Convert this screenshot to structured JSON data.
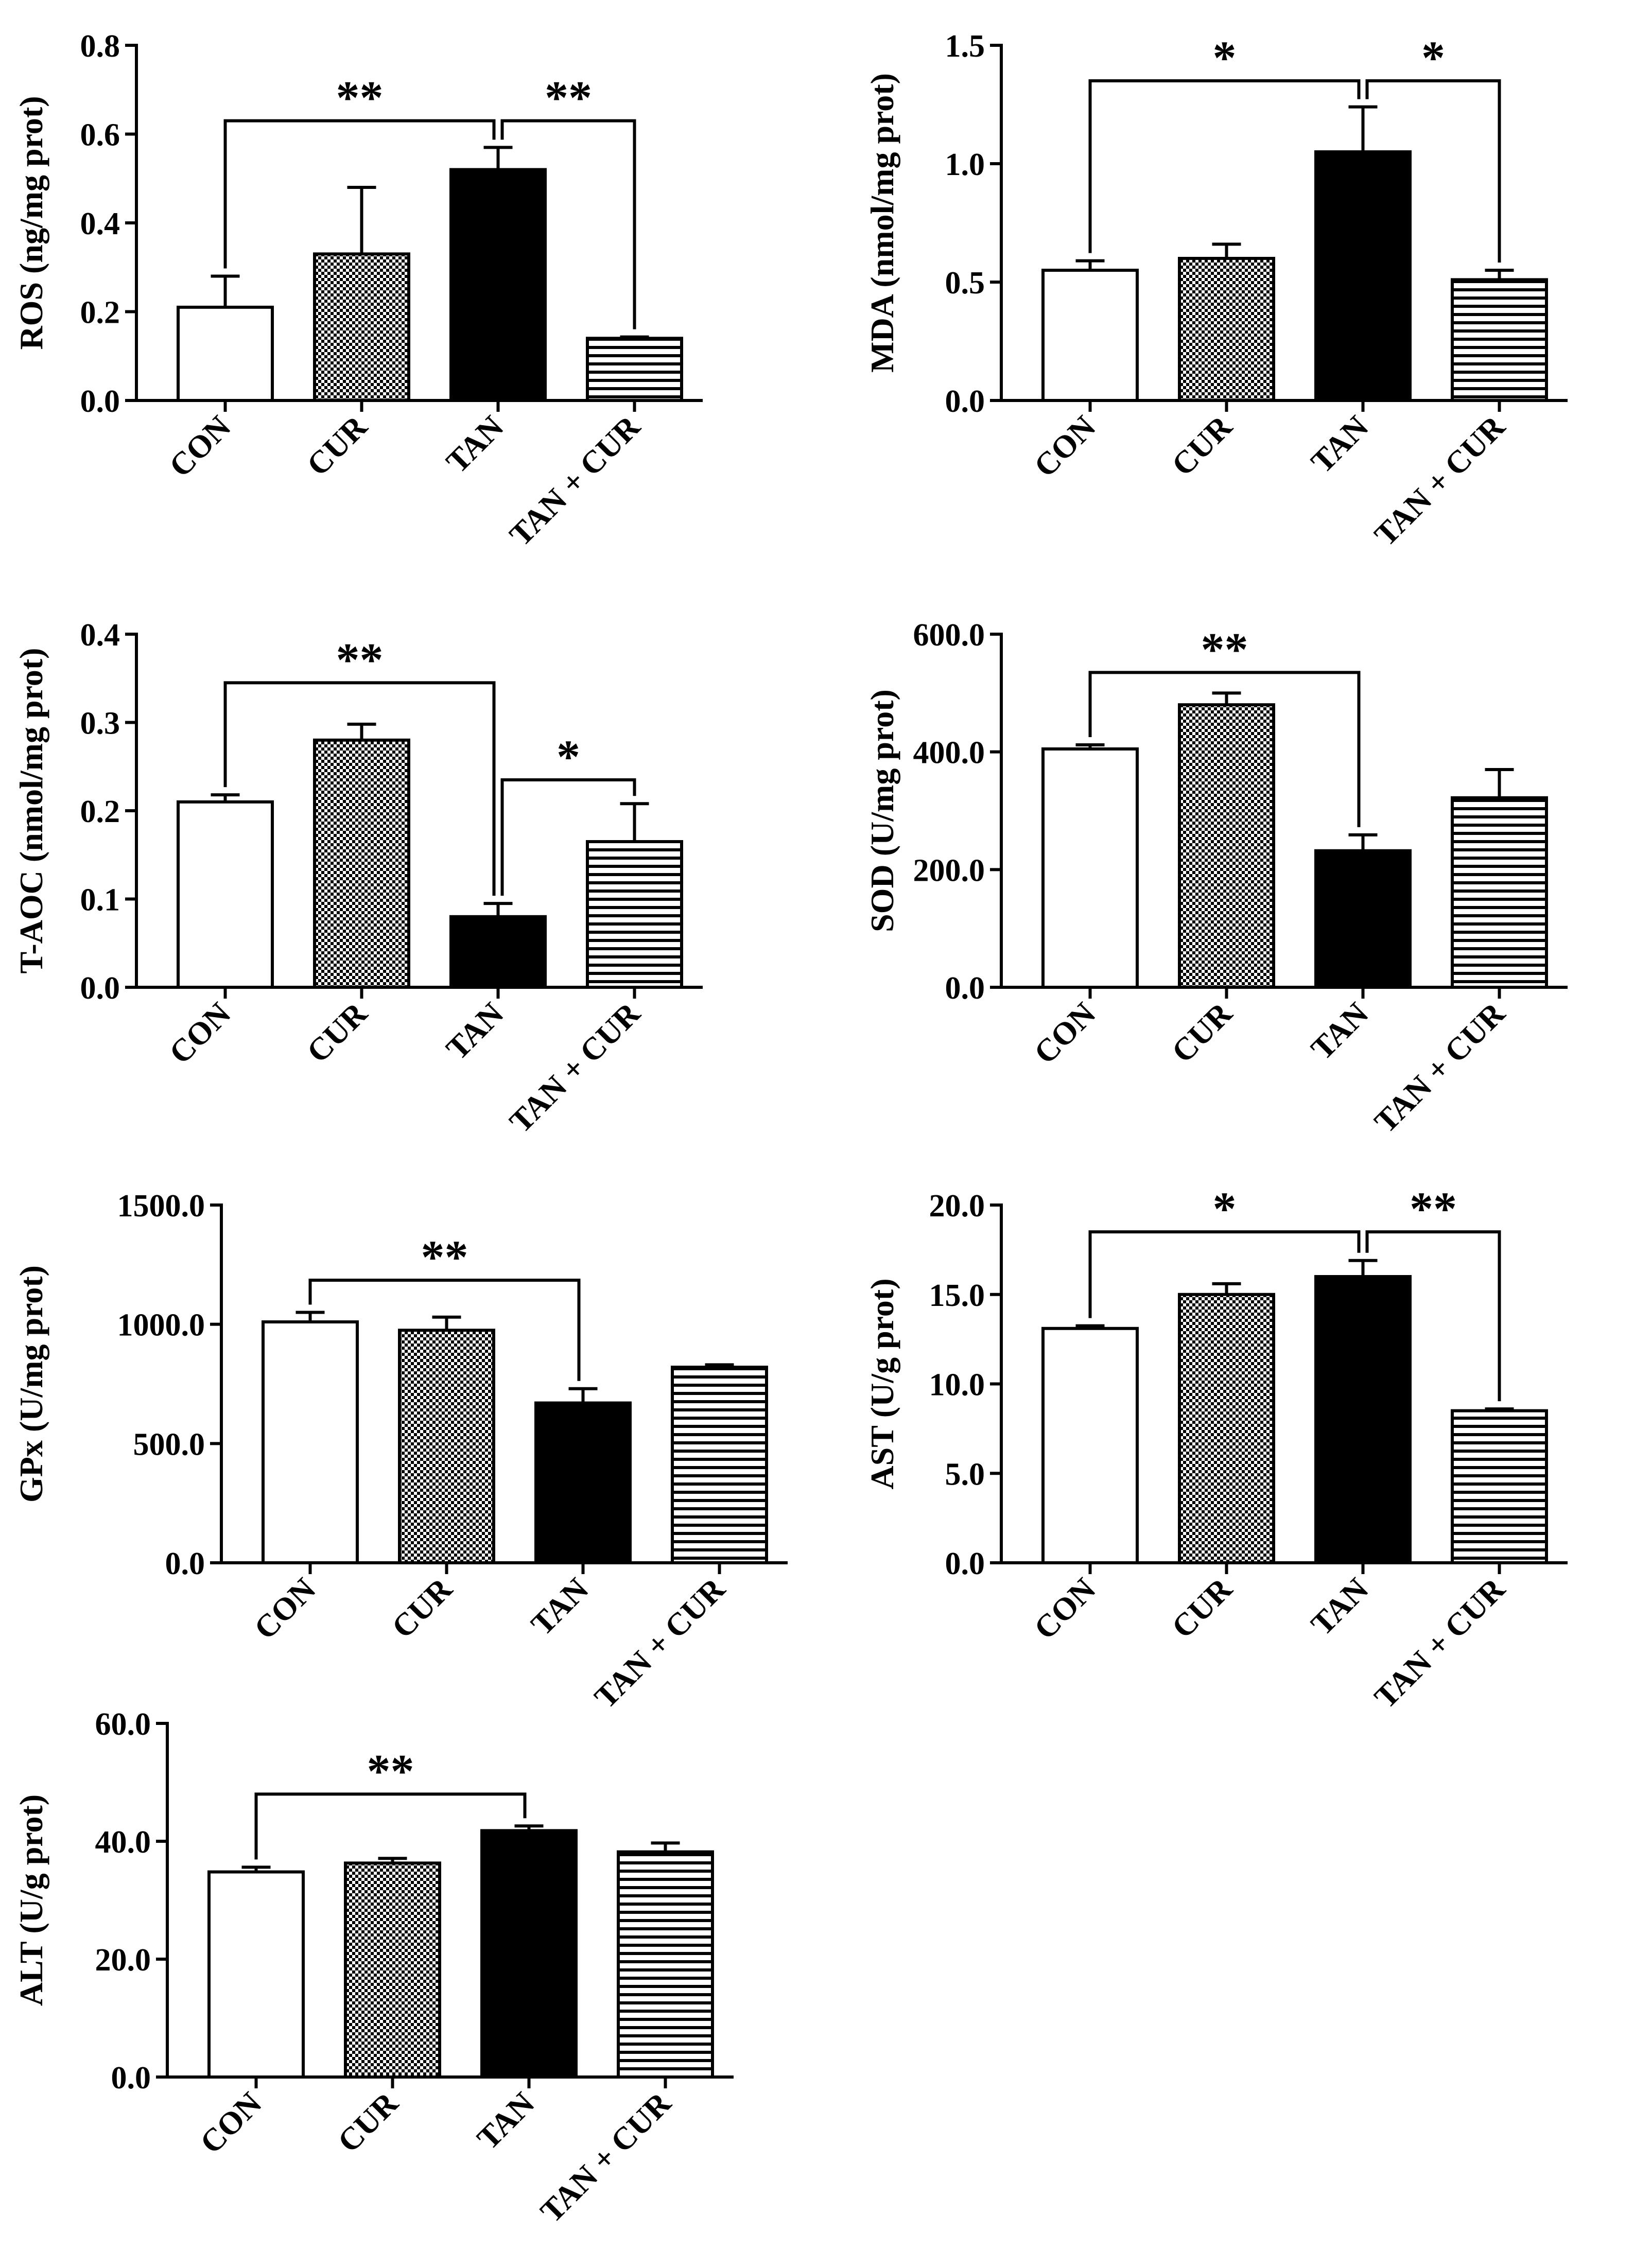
{
  "figure": {
    "pattern_colors": {
      "stroke": "#000000",
      "fill_white": "#ffffff",
      "fill_black": "#000000"
    }
  },
  "chart_data": [
    {
      "id": "ros",
      "type": "bar",
      "categories": [
        "CON",
        "CUR",
        "TAN",
        "TAN + CUR"
      ],
      "fills": [
        "white",
        "checker",
        "black",
        "hlines"
      ],
      "values": [
        0.21,
        0.33,
        0.52,
        0.14
      ],
      "errors": [
        0.07,
        0.15,
        0.05,
        0.003
      ],
      "ylabel": "ROS (ng/mg prot)",
      "ylim": [
        0,
        0.8
      ],
      "yticks": [
        0.0,
        0.2,
        0.4,
        0.6,
        0.8
      ],
      "tick_labels": [
        "0.0",
        "0.2",
        "0.4",
        "0.6",
        "0.8"
      ],
      "significance": [
        {
          "from": 0,
          "to": 2,
          "label": "**",
          "y": 0.63
        },
        {
          "from": 2,
          "to": 3,
          "label": "**",
          "y": 0.63
        }
      ]
    },
    {
      "id": "mda",
      "type": "bar",
      "categories": [
        "CON",
        "CUR",
        "TAN",
        "TAN + CUR"
      ],
      "fills": [
        "white",
        "checker",
        "black",
        "hlines"
      ],
      "values": [
        0.55,
        0.6,
        1.05,
        0.51
      ],
      "errors": [
        0.04,
        0.06,
        0.19,
        0.04
      ],
      "ylabel": "MDA (nmol/mg prot)",
      "ylim": [
        0,
        1.5
      ],
      "yticks": [
        0.0,
        0.5,
        1.0,
        1.5
      ],
      "tick_labels": [
        "0.0",
        "0.5",
        "1.0",
        "1.5"
      ],
      "significance": [
        {
          "from": 0,
          "to": 2,
          "label": "*",
          "y": 1.35
        },
        {
          "from": 2,
          "to": 3,
          "label": "*",
          "y": 1.35
        }
      ]
    },
    {
      "id": "taoc",
      "type": "bar",
      "categories": [
        "CON",
        "CUR",
        "TAN",
        "TAN + CUR"
      ],
      "fills": [
        "white",
        "checker",
        "black",
        "hlines"
      ],
      "values": [
        0.21,
        0.28,
        0.08,
        0.165
      ],
      "errors": [
        0.008,
        0.018,
        0.015,
        0.043
      ],
      "ylabel": "T-AOC (nmol/mg prot)",
      "ylim": [
        0,
        0.4
      ],
      "yticks": [
        0.0,
        0.1,
        0.2,
        0.3,
        0.4
      ],
      "tick_labels": [
        "0.0",
        "0.1",
        "0.2",
        "0.3",
        "0.4"
      ],
      "significance": [
        {
          "from": 0,
          "to": 2,
          "label": "**",
          "y": 0.345
        },
        {
          "from": 2,
          "to": 3,
          "label": "*",
          "y": 0.235
        }
      ]
    },
    {
      "id": "sod",
      "type": "bar",
      "categories": [
        "CON",
        "CUR",
        "TAN",
        "TAN + CUR"
      ],
      "fills": [
        "white",
        "checker",
        "black",
        "hlines"
      ],
      "values": [
        405,
        480,
        232,
        322
      ],
      "errors": [
        7,
        20,
        27,
        48
      ],
      "ylabel": "SOD (U/mg prot)",
      "ylim": [
        0,
        600
      ],
      "yticks": [
        0,
        200,
        400,
        600
      ],
      "tick_labels": [
        "0.0",
        "200.0",
        "400.0",
        "600.0"
      ],
      "significance": [
        {
          "from": 0,
          "to": 2,
          "label": "**",
          "y": 535
        }
      ]
    },
    {
      "id": "gpx",
      "type": "bar",
      "categories": [
        "CON",
        "CUR",
        "TAN",
        "TAN + CUR"
      ],
      "fills": [
        "white",
        "checker",
        "black",
        "hlines"
      ],
      "values": [
        1010,
        975,
        670,
        820
      ],
      "errors": [
        40,
        55,
        60,
        10
      ],
      "ylabel": "GPx (U/mg prot)",
      "ylim": [
        0,
        1500
      ],
      "yticks": [
        0,
        500,
        1000,
        1500
      ],
      "tick_labels": [
        "0.0",
        "500.0",
        "1000.0",
        "1500.0"
      ],
      "significance": [
        {
          "from": 0,
          "to": 2,
          "label": "**",
          "y": 1185
        }
      ]
    },
    {
      "id": "ast",
      "type": "bar",
      "categories": [
        "CON",
        "CUR",
        "TAN",
        "TAN + CUR"
      ],
      "fills": [
        "white",
        "checker",
        "black",
        "hlines"
      ],
      "values": [
        13.1,
        15.0,
        16.0,
        8.5
      ],
      "errors": [
        0.15,
        0.6,
        0.9,
        0.1
      ],
      "ylabel": "AST (U/g prot)",
      "ylim": [
        0,
        20
      ],
      "yticks": [
        0,
        5,
        10,
        15,
        20
      ],
      "tick_labels": [
        "0.0",
        "5.0",
        "10.0",
        "15.0",
        "20.0"
      ],
      "significance": [
        {
          "from": 0,
          "to": 2,
          "label": "*",
          "y": 18.5
        },
        {
          "from": 2,
          "to": 3,
          "label": "**",
          "y": 18.5
        }
      ]
    },
    {
      "id": "alt",
      "type": "bar",
      "categories": [
        "CON",
        "CUR",
        "TAN",
        "TAN + CUR"
      ],
      "fills": [
        "white",
        "checker",
        "black",
        "hlines"
      ],
      "values": [
        34.8,
        36.3,
        41.8,
        38.2
      ],
      "errors": [
        0.8,
        0.8,
        0.8,
        1.5
      ],
      "ylabel": "ALT (U/g prot)",
      "ylim": [
        0,
        60
      ],
      "yticks": [
        0,
        20,
        40,
        60
      ],
      "tick_labels": [
        "0.0",
        "20.0",
        "40.0",
        "60.0"
      ],
      "significance": [
        {
          "from": 0,
          "to": 2,
          "label": "**",
          "y": 48
        }
      ]
    }
  ]
}
